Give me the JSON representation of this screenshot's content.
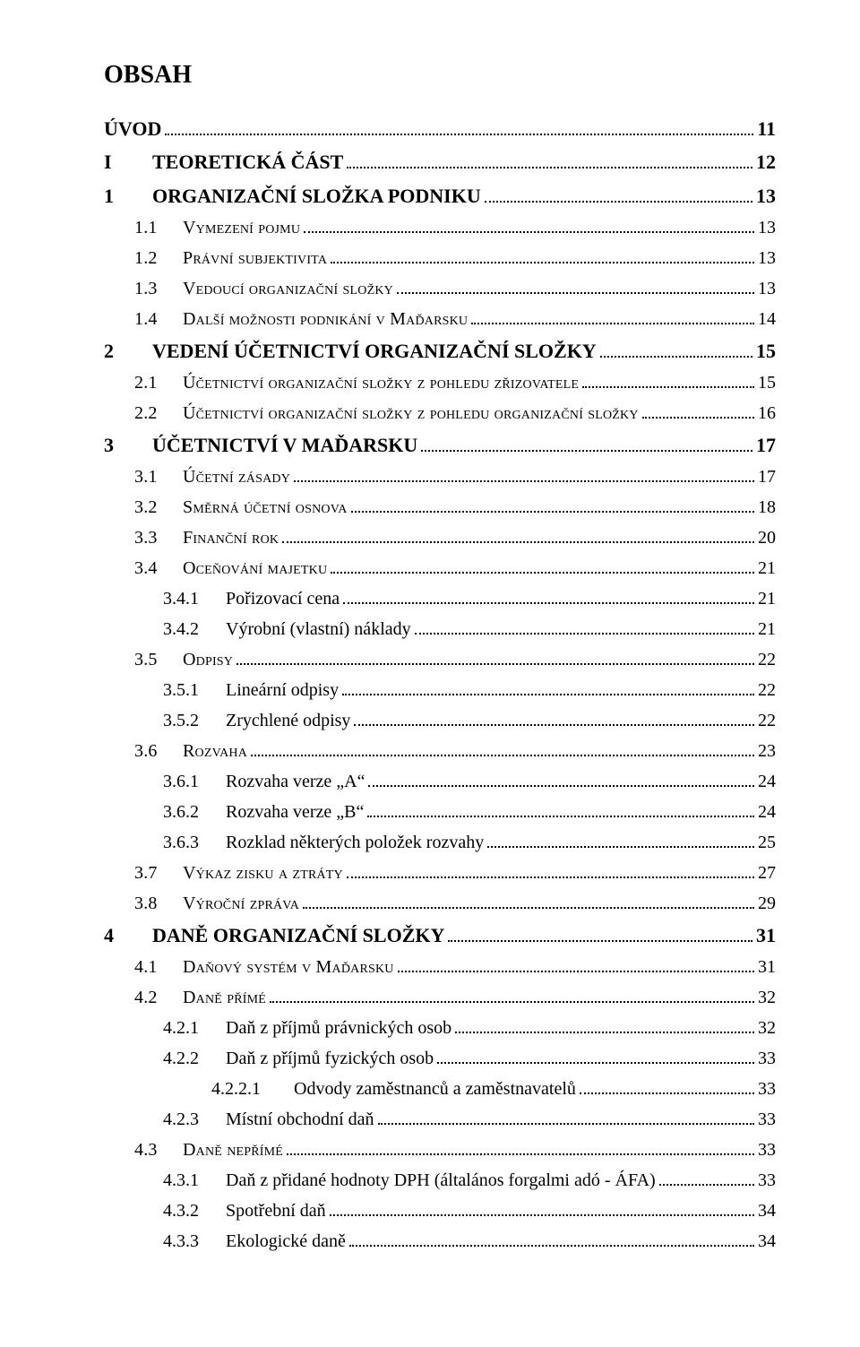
{
  "title": "OBSAH",
  "entries": [
    {
      "level": "part",
      "num": "",
      "text": "ÚVOD",
      "page": "11",
      "bold": true,
      "sc": false
    },
    {
      "level": "part",
      "num": "I",
      "text": "TEORETICKÁ ČÁST",
      "page": "12",
      "bold": true,
      "sc": false
    },
    {
      "level": "chap",
      "num": "1",
      "text": "ORGANIZAČNÍ SLOŽKA PODNIKU",
      "page": "13",
      "bold": true,
      "sc": false
    },
    {
      "level": "l1",
      "num": "1.1",
      "text": "Vymezení pojmu",
      "page": "13",
      "bold": false,
      "sc": true
    },
    {
      "level": "l1",
      "num": "1.2",
      "text": "Právní subjektivita",
      "page": "13",
      "bold": false,
      "sc": true
    },
    {
      "level": "l1",
      "num": "1.3",
      "text": "Vedoucí organizační složky",
      "page": "13",
      "bold": false,
      "sc": true
    },
    {
      "level": "l1",
      "num": "1.4",
      "text": "Další možnosti podnikání v Maďarsku",
      "page": "14",
      "bold": false,
      "sc": true
    },
    {
      "level": "chap",
      "num": "2",
      "text": "VEDENÍ ÚČETNICTVÍ ORGANIZAČNÍ SLOŽKY",
      "page": "15",
      "bold": true,
      "sc": false
    },
    {
      "level": "l1",
      "num": "2.1",
      "text": "Účetnictví organizační složky z pohledu zřizovatele",
      "page": "15",
      "bold": false,
      "sc": true
    },
    {
      "level": "l1",
      "num": "2.2",
      "text": "Účetnictví organizační složky z pohledu organizační složky",
      "page": "16",
      "bold": false,
      "sc": true
    },
    {
      "level": "chap",
      "num": "3",
      "text": "ÚČETNICTVÍ V MAĎARSKU",
      "page": "17",
      "bold": true,
      "sc": false
    },
    {
      "level": "l1",
      "num": "3.1",
      "text": "Účetní zásady",
      "page": "17",
      "bold": false,
      "sc": true
    },
    {
      "level": "l1",
      "num": "3.2",
      "text": "Směrná účetní osnova",
      "page": "18",
      "bold": false,
      "sc": true
    },
    {
      "level": "l1",
      "num": "3.3",
      "text": "Finanční rok",
      "page": "20",
      "bold": false,
      "sc": true
    },
    {
      "level": "l1",
      "num": "3.4",
      "text": "Oceňování majetku",
      "page": "21",
      "bold": false,
      "sc": true
    },
    {
      "level": "l2",
      "num": "3.4.1",
      "text": "Pořizovací cena",
      "page": "21",
      "bold": false,
      "sc": false
    },
    {
      "level": "l2",
      "num": "3.4.2",
      "text": "Výrobní (vlastní) náklady",
      "page": "21",
      "bold": false,
      "sc": false
    },
    {
      "level": "l1",
      "num": "3.5",
      "text": "Odpisy",
      "page": "22",
      "bold": false,
      "sc": true
    },
    {
      "level": "l2",
      "num": "3.5.1",
      "text": "Lineární odpisy",
      "page": "22",
      "bold": false,
      "sc": false
    },
    {
      "level": "l2",
      "num": "3.5.2",
      "text": "Zrychlené odpisy",
      "page": "22",
      "bold": false,
      "sc": false
    },
    {
      "level": "l1",
      "num": "3.6",
      "text": "Rozvaha",
      "page": "23",
      "bold": false,
      "sc": true
    },
    {
      "level": "l2",
      "num": "3.6.1",
      "text": "Rozvaha verze „A“",
      "page": "24",
      "bold": false,
      "sc": false
    },
    {
      "level": "l2",
      "num": "3.6.2",
      "text": "Rozvaha verze „B“",
      "page": "24",
      "bold": false,
      "sc": false
    },
    {
      "level": "l2",
      "num": "3.6.3",
      "text": "Rozklad některých položek rozvahy",
      "page": "25",
      "bold": false,
      "sc": false
    },
    {
      "level": "l1",
      "num": "3.7",
      "text": "Výkaz zisku a ztráty",
      "page": "27",
      "bold": false,
      "sc": true
    },
    {
      "level": "l1",
      "num": "3.8",
      "text": "Výroční zpráva",
      "page": "29",
      "bold": false,
      "sc": true
    },
    {
      "level": "chap",
      "num": "4",
      "text": "DANĚ ORGANIZAČNÍ SLOŽKY",
      "page": "31",
      "bold": true,
      "sc": false
    },
    {
      "level": "l1",
      "num": "4.1",
      "text": "Daňový systém v Maďarsku",
      "page": "31",
      "bold": false,
      "sc": true
    },
    {
      "level": "l1",
      "num": "4.2",
      "text": "Daně přímé",
      "page": "32",
      "bold": false,
      "sc": true
    },
    {
      "level": "l2",
      "num": "4.2.1",
      "text": "Daň z příjmů právnických osob",
      "page": "32",
      "bold": false,
      "sc": false
    },
    {
      "level": "l2",
      "num": "4.2.2",
      "text": "Daň z příjmů fyzických osob",
      "page": "33",
      "bold": false,
      "sc": false
    },
    {
      "level": "l3",
      "num": "4.2.2.1",
      "text": "Odvody zaměstnanců a zaměstnavatelů",
      "page": "33",
      "bold": false,
      "sc": false
    },
    {
      "level": "l2",
      "num": "4.2.3",
      "text": "Místní obchodní daň",
      "page": "33",
      "bold": false,
      "sc": false
    },
    {
      "level": "l1",
      "num": "4.3",
      "text": "Daně nepřímé",
      "page": "33",
      "bold": false,
      "sc": true
    },
    {
      "level": "l2",
      "num": "4.3.1",
      "text": "Daň z přidané hodnoty DPH (általános forgalmi adó - ÁFA)",
      "page": "33",
      "bold": false,
      "sc": false
    },
    {
      "level": "l2",
      "num": "4.3.2",
      "text": "Spotřební daň",
      "page": "34",
      "bold": false,
      "sc": false
    },
    {
      "level": "l2",
      "num": "4.3.3",
      "text": "Ekologické daně",
      "page": "34",
      "bold": false,
      "sc": false
    }
  ]
}
